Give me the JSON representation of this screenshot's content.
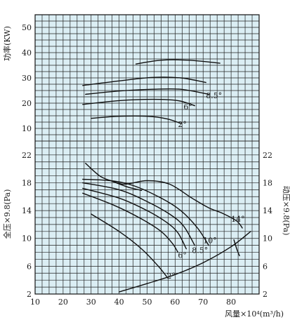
{
  "chart_data": {
    "type": "line",
    "xlabel": "风量×10⁴(m³/h)",
    "x_ticks": [
      10,
      20,
      30,
      40,
      50,
      60,
      70,
      80
    ],
    "xlim": [
      10,
      90
    ],
    "grid": true,
    "background_color": "#dbeef4",
    "panels": [
      {
        "id": "power",
        "ylabel": "功率(KW)",
        "y_ticks": [
          10,
          20,
          30,
          40,
          50
        ],
        "ylim": [
          5,
          55
        ],
        "series": [
          {
            "label": "",
            "points": [
              [
                46,
                35.5
              ],
              [
                55,
                37
              ],
              [
                65,
                37
              ],
              [
                76,
                35.8
              ]
            ]
          },
          {
            "label": "",
            "points": [
              [
                27,
                27
              ],
              [
                40,
                28.8
              ],
              [
                52,
                30.2
              ],
              [
                62,
                30
              ],
              [
                71,
                28.2
              ]
            ]
          },
          {
            "label": "8.5°",
            "points": [
              [
                28,
                23.5
              ],
              [
                40,
                24.8
              ],
              [
                52,
                25.5
              ],
              [
                62,
                25.5
              ],
              [
                72,
                23.5
              ]
            ]
          },
          {
            "label": "6°",
            "points": [
              [
                27,
                19.5
              ],
              [
                40,
                21
              ],
              [
                52,
                21.5
              ],
              [
                61,
                21
              ],
              [
                67,
                19
              ]
            ]
          },
          {
            "label": "2°",
            "points": [
              [
                30,
                14
              ],
              [
                40,
                14.8
              ],
              [
                50,
                14.8
              ],
              [
                57,
                13.8
              ],
              [
                62,
                12
              ]
            ]
          }
        ],
        "annotations": [
          {
            "text": "8.5°",
            "x": 71,
            "y": 22
          },
          {
            "text": "6°",
            "x": 63,
            "y": 17.5
          },
          {
            "text": "2°",
            "x": 61,
            "y": 10.5
          }
        ]
      },
      {
        "id": "pressure",
        "ylabel": "全压×9.8(Pa)",
        "ylabel_right": "动压×9.8(Pa)",
        "y_ticks": [
          2,
          6,
          10,
          14,
          18,
          22
        ],
        "ylim": [
          2,
          24
        ],
        "series": [
          {
            "label": "14°",
            "points": [
              [
                28,
                20.8
              ],
              [
                33,
                19
              ],
              [
                37,
                18.3
              ],
              [
                42,
                17.8
              ],
              [
                50,
                18.3
              ],
              [
                58,
                17.8
              ],
              [
                66,
                15.8
              ],
              [
                72,
                14.4
              ],
              [
                77,
                13.6
              ],
              [
                82,
                12.5
              ],
              [
                84,
                11.5
              ]
            ]
          },
          {
            "label": "",
            "points": [
              [
                37,
                18.3
              ],
              [
                43,
                17.4
              ],
              [
                48,
                16.9
              ]
            ]
          },
          {
            "label": "",
            "points": [
              [
                27,
                18.5
              ],
              [
                37,
                18.3
              ],
              [
                45,
                17.6
              ],
              [
                55,
                15.8
              ],
              [
                62,
                14
              ],
              [
                68,
                11.5
              ],
              [
                72,
                9
              ]
            ]
          },
          {
            "label": "10°",
            "points": [
              [
                27,
                18
              ],
              [
                40,
                17
              ],
              [
                50,
                15.3
              ],
              [
                58,
                13.5
              ],
              [
                63,
                11.8
              ],
              [
                67,
                9
              ]
            ]
          },
          {
            "label": "8.5°",
            "points": [
              [
                27,
                17.2
              ],
              [
                40,
                15.8
              ],
              [
                50,
                14
              ],
              [
                57,
                12.3
              ],
              [
                61,
                10.8
              ],
              [
                64,
                8.5
              ]
            ]
          },
          {
            "label": "6°",
            "points": [
              [
                27,
                16.5
              ],
              [
                38,
                14.8
              ],
              [
                48,
                12.8
              ],
              [
                55,
                11
              ],
              [
                59,
                9.3
              ],
              [
                61,
                8
              ]
            ]
          },
          {
            "label": "2°",
            "points": [
              [
                30,
                13.5
              ],
              [
                40,
                11
              ],
              [
                48,
                8.5
              ],
              [
                54,
                6
              ],
              [
                57,
                4.5
              ]
            ]
          },
          {
            "label": "",
            "points": [
              [
                81,
                9.8
              ],
              [
                82,
                8.5
              ],
              [
                83,
                7.5
              ]
            ]
          },
          {
            "label": "",
            "points": [
              [
                40,
                2.3
              ],
              [
                50,
                3.5
              ],
              [
                60,
                4.8
              ],
              [
                70,
                6.5
              ],
              [
                80,
                8.8
              ],
              [
                87,
                11
              ]
            ]
          }
        ],
        "annotations": [
          {
            "text": "14°",
            "x": 80,
            "y": 12.4
          },
          {
            "text": "10°",
            "x": 70,
            "y": 9.3
          },
          {
            "text": "8.5°",
            "x": 66,
            "y": 7.9
          },
          {
            "text": "6°",
            "x": 61,
            "y": 7.2
          },
          {
            "text": "2°",
            "x": 57,
            "y": 4.2
          }
        ]
      }
    ]
  }
}
